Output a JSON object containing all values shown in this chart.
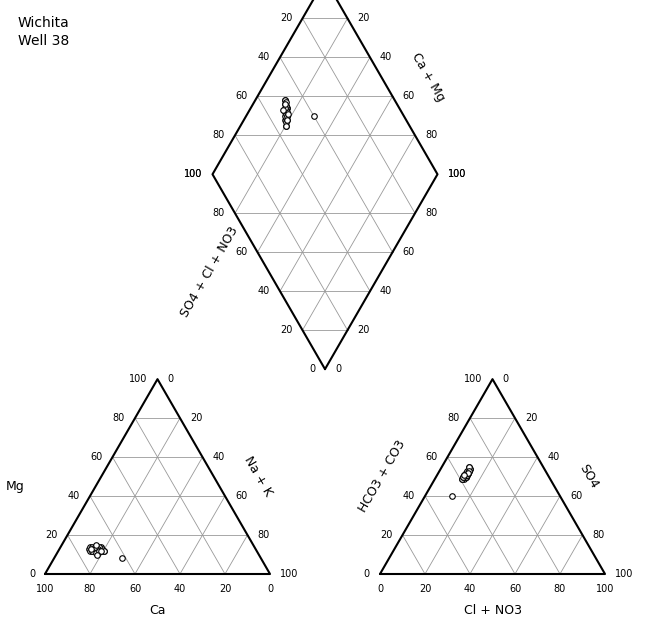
{
  "title": "Wichita\nWell 38",
  "background_color": "#ffffff",
  "grid_color": "#999999",
  "border_color": "#000000",
  "marker_size": 4,
  "tick_fontsize": 7,
  "label_fontsize": 9,
  "title_fontsize": 10,
  "cation_data": [
    [
      70,
      13,
      17
    ],
    [
      72,
      12,
      16
    ],
    [
      68,
      14,
      18
    ],
    [
      73,
      12,
      15
    ],
    [
      71,
      11,
      18
    ],
    [
      69,
      13,
      18
    ],
    [
      74,
      13,
      13
    ],
    [
      70,
      14,
      16
    ],
    [
      72,
      12,
      16
    ],
    [
      68,
      12,
      20
    ],
    [
      71,
      13,
      16
    ],
    [
      73,
      14,
      13
    ],
    [
      69,
      12,
      19
    ],
    [
      70,
      13,
      17
    ],
    [
      72,
      14,
      14
    ],
    [
      71,
      12,
      17
    ],
    [
      68,
      13,
      19
    ],
    [
      74,
      12,
      14
    ],
    [
      70,
      12,
      18
    ],
    [
      72,
      13,
      15
    ],
    [
      69,
      14,
      17
    ],
    [
      71,
      13,
      16
    ],
    [
      73,
      12,
      15
    ],
    [
      70,
      13,
      17
    ],
    [
      68,
      12,
      20
    ],
    [
      72,
      11,
      17
    ],
    [
      71,
      14,
      15
    ],
    [
      70,
      12,
      18
    ],
    [
      73,
      13,
      14
    ],
    [
      69,
      12,
      19
    ],
    [
      70,
      15,
      15
    ],
    [
      72,
      10,
      18
    ],
    [
      62,
      8,
      30
    ]
  ],
  "anion_data": [
    [
      35,
      52,
      13
    ],
    [
      37,
      50,
      13
    ],
    [
      33,
      54,
      13
    ],
    [
      38,
      50,
      12
    ],
    [
      36,
      52,
      12
    ],
    [
      34,
      53,
      13
    ],
    [
      39,
      49,
      12
    ],
    [
      35,
      52,
      13
    ],
    [
      37,
      50,
      13
    ],
    [
      33,
      55,
      12
    ],
    [
      36,
      51,
      13
    ],
    [
      38,
      49,
      13
    ],
    [
      34,
      53,
      13
    ],
    [
      35,
      52,
      13
    ],
    [
      37,
      50,
      13
    ],
    [
      36,
      52,
      12
    ],
    [
      33,
      54,
      13
    ],
    [
      39,
      49,
      12
    ],
    [
      35,
      53,
      12
    ],
    [
      37,
      50,
      13
    ],
    [
      34,
      53,
      13
    ],
    [
      36,
      51,
      13
    ],
    [
      38,
      50,
      12
    ],
    [
      35,
      52,
      13
    ],
    [
      33,
      55,
      12
    ],
    [
      37,
      51,
      12
    ],
    [
      36,
      51,
      13
    ],
    [
      35,
      52,
      13
    ],
    [
      38,
      50,
      12
    ],
    [
      34,
      53,
      13
    ],
    [
      35,
      52,
      13
    ],
    [
      37,
      51,
      12
    ],
    [
      48,
      40,
      12
    ]
  ]
}
